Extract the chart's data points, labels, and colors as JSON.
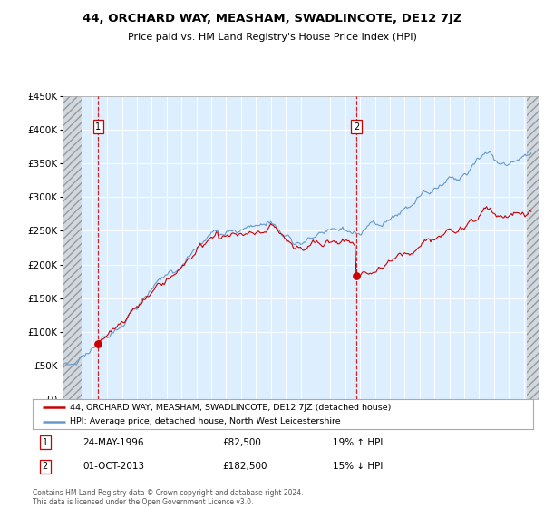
{
  "title": "44, ORCHARD WAY, MEASHAM, SWADLINCOTE, DE12 7JZ",
  "subtitle": "Price paid vs. HM Land Registry's House Price Index (HPI)",
  "legend_line1": "44, ORCHARD WAY, MEASHAM, SWADLINCOTE, DE12 7JZ (detached house)",
  "legend_line2": "HPI: Average price, detached house, North West Leicestershire",
  "annotation1_date": "24-MAY-1996",
  "annotation1_price": "£82,500",
  "annotation1_hpi": "19% ↑ HPI",
  "annotation2_date": "01-OCT-2013",
  "annotation2_price": "£182,500",
  "annotation2_hpi": "15% ↓ HPI",
  "footer": "Contains HM Land Registry data © Crown copyright and database right 2024.\nThis data is licensed under the Open Government Licence v3.0.",
  "sale1_year": 1996.39,
  "sale1_price": 82500,
  "sale2_year": 2013.75,
  "sale2_price": 182500,
  "red_color": "#cc0000",
  "blue_color": "#6699cc",
  "bg_color": "#ddeeff",
  "ylim_min": 0,
  "ylim_max": 450000,
  "xlim_min": 1994,
  "xlim_max": 2026,
  "hatch_left_end": 1995.3,
  "hatch_right_start": 2025.2
}
